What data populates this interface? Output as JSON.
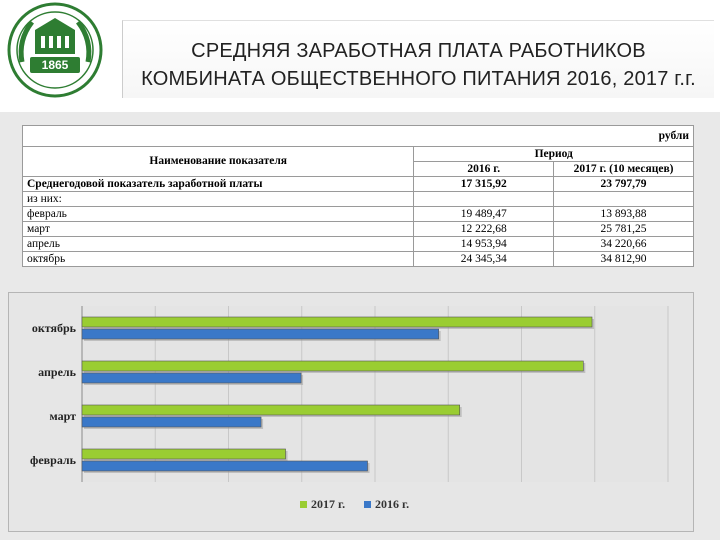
{
  "header": {
    "title_line1": "СРЕДНЯЯ ЗАРАБОТНАЯ ПЛАТА РАБОТНИКОВ",
    "title_line2": "КОМБИНАТА ОБЩЕСТВЕННОГО ПИТАНИЯ 2016, 2017 г.г.",
    "logo_year": "1865"
  },
  "colors": {
    "green": "#9ACD32",
    "blue": "#3A78C8",
    "logo_green": "#2E7D32"
  },
  "table": {
    "units": "рубли",
    "col_name": "Наименование показателя",
    "col_period": "Период",
    "col_2016": "2016 г.",
    "col_2017": "2017 г. (10 месяцев)",
    "rows": [
      {
        "label": "Среднегодовой показатель заработной платы",
        "v2016": "17 315,92",
        "v2017": "23 797,79",
        "bold": true
      },
      {
        "label": "из них:",
        "v2016": "",
        "v2017": "",
        "bold": false
      },
      {
        "label": "февраль",
        "v2016": "19 489,47",
        "v2017": "13 893,88",
        "bold": false
      },
      {
        "label": "март",
        "v2016": "12 222,68",
        "v2017": "25 781,25",
        "bold": false
      },
      {
        "label": "апрель",
        "v2016": "14 953,94",
        "v2017": "34 220,66",
        "bold": false
      },
      {
        "label": "октябрь",
        "v2016": "24 345,34",
        "v2017": "34 812,90",
        "bold": false
      }
    ]
  },
  "chart_data": {
    "type": "bar",
    "orientation": "horizontal",
    "categories": [
      "октябрь",
      "апрель",
      "март",
      "февраль"
    ],
    "series": [
      {
        "name": "2017 г.",
        "color": "#9ACD32",
        "values": [
          34812.9,
          34220.66,
          25781.25,
          13893.88
        ]
      },
      {
        "name": "2016 г.",
        "color": "#3A78C8",
        "values": [
          24345.34,
          14953.94,
          12222.68,
          19489.47
        ]
      }
    ],
    "xlim": [
      0,
      40000
    ],
    "grid": true,
    "legend_position": "bottom"
  }
}
